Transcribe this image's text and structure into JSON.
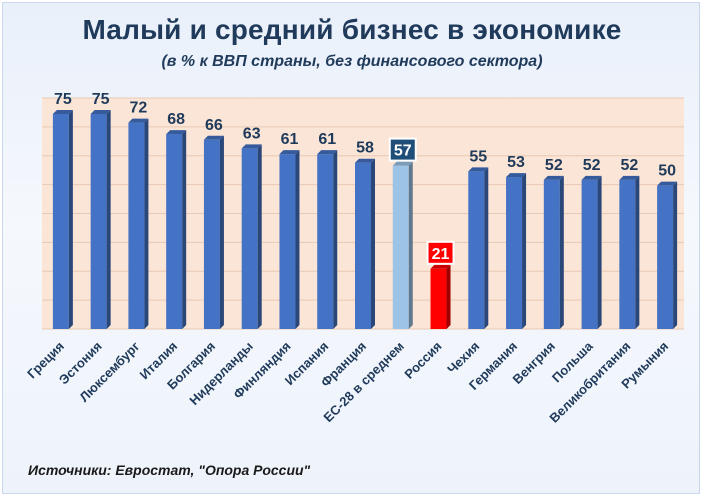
{
  "title": "Малый и средний бизнес в экономике",
  "subtitle": "(в % к ВВП страны, без финансового сектора)",
  "source": "Источники:  Евростат, \"Опора России\"",
  "colors": {
    "bar": "#4472c4",
    "bar_average": "#9dc3e6",
    "bar_russia": "#ff0000",
    "plot_background": "#fbe5d6",
    "label_average_box": "#1f4e79",
    "label_russia_box": "#ff0000"
  },
  "chart_data": {
    "type": "bar",
    "categories": [
      "Греция",
      "Эстония",
      "Люксембург",
      "Италия",
      "Болгария",
      "Нидерланды",
      "Финляндия",
      "Испания",
      "Франция",
      "ЕС-28 в среднем",
      "Россия",
      "Чехия",
      "Германия",
      "Венгрия",
      "Польша",
      "Великобритания",
      "Румыния"
    ],
    "values": [
      75,
      75,
      72,
      68,
      66,
      63,
      61,
      61,
      58,
      57,
      21,
      55,
      53,
      52,
      52,
      52,
      50
    ],
    "data_labels": [
      "75",
      "75",
      "72",
      "68",
      "66",
      "63",
      "61",
      "61",
      "58",
      "57",
      "21",
      "55",
      "53",
      "52",
      "52",
      "52",
      "50"
    ],
    "highlights": {
      "ЕС-28 в среднем": "average",
      "Россия": "russia"
    },
    "ylim": [
      0,
      75
    ],
    "grid": true,
    "y_tick_labels_shown": false,
    "legend": "none"
  }
}
